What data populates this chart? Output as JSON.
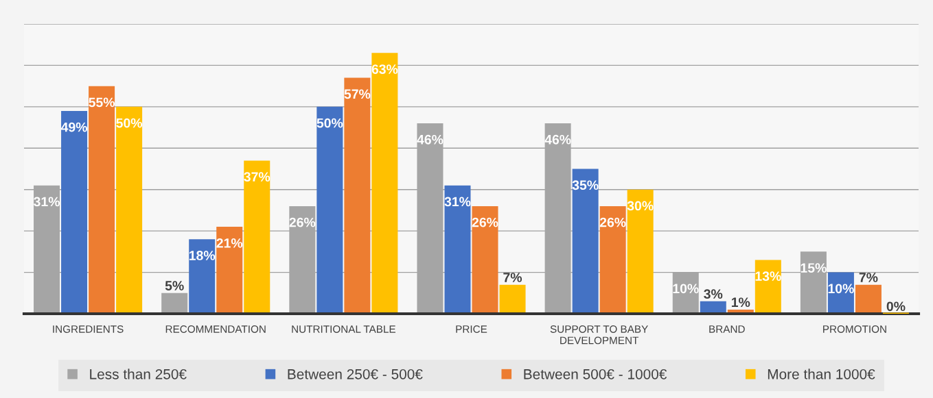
{
  "chart_data": {
    "type": "bar",
    "categories": [
      "INGREDIENTS",
      "RECOMMENDATION",
      "NUTRITIONAL TABLE",
      "PRICE",
      "SUPPORT TO BABY\nDEVELOPMENT",
      "BRAND",
      "PROMOTION"
    ],
    "series": [
      {
        "name": "Less than 250€",
        "color": "#a5a5a5",
        "values": [
          31,
          5,
          26,
          46,
          46,
          10,
          15
        ],
        "value_labels": [
          "31%",
          "5%",
          "26%",
          "46%",
          "46%",
          "10%",
          "15%"
        ]
      },
      {
        "name": "Between 250€ - 500€",
        "color": "#4472c4",
        "values": [
          49,
          18,
          50,
          31,
          35,
          3,
          10
        ],
        "value_labels": [
          "49%",
          "18%",
          "50%",
          "31%",
          "35%",
          "3%",
          "10%"
        ]
      },
      {
        "name": "Between 500€ - 1000€",
        "color": "#ed7d31",
        "values": [
          55,
          21,
          57,
          26,
          26,
          1,
          7
        ],
        "value_labels": [
          "55%",
          "21%",
          "57%",
          "26%",
          "26%",
          "1%",
          "7%"
        ]
      },
      {
        "name": "More than 1000€",
        "color": "#ffc000",
        "values": [
          50,
          37,
          63,
          7,
          30,
          13,
          0
        ],
        "value_labels": [
          "50%",
          "37%",
          "63%",
          "7%",
          "30%",
          "13%",
          "0%"
        ]
      }
    ],
    "ylim": [
      0,
      70
    ],
    "yticks": [
      {
        "value": 0,
        "label": null
      },
      {
        "value": 10,
        "label": null
      },
      {
        "value": 20,
        "label": null
      },
      {
        "value": 30,
        "label": null
      },
      {
        "value": 40,
        "label": null
      },
      {
        "value": 50,
        "label": null
      },
      {
        "value": 60,
        "label": null
      },
      {
        "value": 70,
        "label": null
      }
    ],
    "tick_labels": "x",
    "grid": "y",
    "legend": "bottom"
  }
}
